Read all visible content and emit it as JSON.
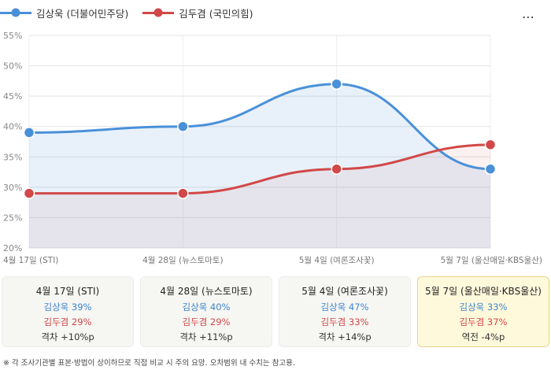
{
  "menu_icon": "more-dots-icon",
  "chart_data": {
    "type": "line",
    "x": [
      "4월 17일 (STI)",
      "4월 28일 (뉴스토마토)",
      "5월 4일 (여론조사꽃)",
      "5월 7일 (울산매일·KBS울산)"
    ],
    "series": [
      {
        "name": "김상욱 (더불어민주당)",
        "values": [
          39,
          40,
          47,
          33
        ],
        "color": "#4a90d9"
      },
      {
        "name": "김두겸 (국민의힘)",
        "values": [
          29,
          29,
          33,
          37
        ],
        "color": "#d24848"
      }
    ],
    "ylim": [
      20,
      55
    ],
    "yticks": [
      "20%",
      "25%",
      "30%",
      "35%",
      "40%",
      "45%",
      "50%",
      "55%"
    ],
    "grid": true,
    "legend_position": "top-left"
  },
  "cards": [
    {
      "title": "4월 17일 (STI)",
      "line1": "김상욱 39%",
      "line2": "김두겸 29%",
      "line3": "격차 +10%p",
      "highlight": false
    },
    {
      "title": "4월 28일 (뉴스토마토)",
      "line1": "김상욱 40%",
      "line2": "김두겸 29%",
      "line3": "격차 +11%p",
      "highlight": false
    },
    {
      "title": "5월 4일 (여론조사꽃)",
      "line1": "김상욱 47%",
      "line2": "김두겸 33%",
      "line3": "격차 +14%p",
      "highlight": false
    },
    {
      "title": "5월 7일 (울산매일·KBS울산)",
      "line1": "김상욱 33%",
      "line2": "김두겸 37%",
      "line3": "역전 -4%p",
      "highlight": true
    }
  ],
  "footnote": "※ 각 조사기관별 표본·방법이 상이하므로 직접 비교 시 주의 요망. 오차범위 내 수치는 참고용."
}
